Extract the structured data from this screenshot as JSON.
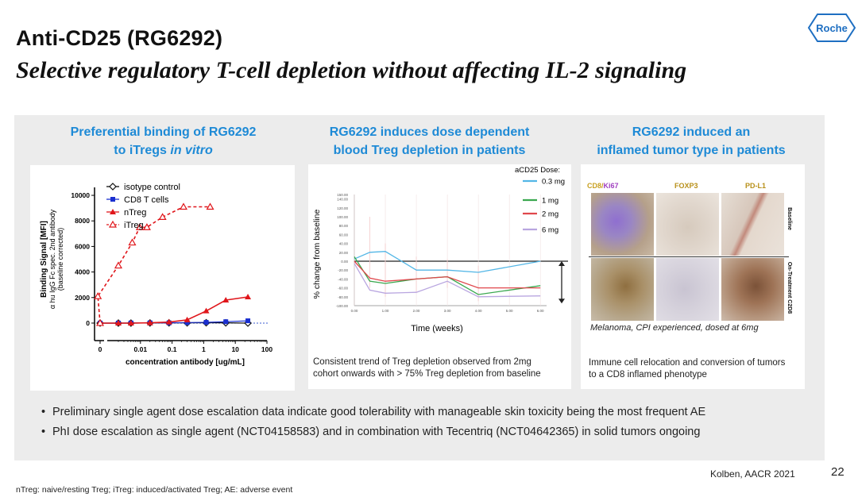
{
  "header": {
    "title": "Anti-CD25 (RG6292)",
    "subtitle": "Selective regulatory T-cell depletion without affecting IL-2 signaling",
    "logo_text": "Roche"
  },
  "columns": [
    {
      "title_line1": "Preferential binding of RG6292",
      "title_line2_pre": "to iTregs ",
      "title_line2_italic": "in vitro"
    },
    {
      "title_line1": "RG6292 induces dose dependent",
      "title_line2": "blood Treg depletion in patients"
    },
    {
      "title_line1": "RG6292 induced an",
      "title_line2": "inflamed tumor type in patients"
    }
  ],
  "captions": {
    "middle_line1": "Consistent trend of Treg depletion observed from 2mg",
    "middle_line2": "cohort onwards with > 75% Treg depletion from baseline",
    "right_line1": "Immune cell relocation and conversion of tumors",
    "right_line2": "to a CD8 inflamed phenotype"
  },
  "pathology": {
    "headers": [
      "CD8/",
      "Ki67",
      "FOXP3",
      "PD-L1"
    ],
    "row_labels": [
      "Baseline",
      "On-Treatment C2D8"
    ],
    "caption": "Melanoma, CPI experienced, dosed at 6mg"
  },
  "bullets": [
    "Preliminary single agent dose escalation data indicate good tolerability with manageable skin toxicity being the most frequent AE",
    "PhI dose escalation as single agent (NCT04158583) and in combination with Tecentriq (NCT04642365) in solid tumors ongoing"
  ],
  "footer": {
    "citation": "Kolben, AACR 2021",
    "page": "22",
    "footnote": "nTreg: naive/resting Treg; iTreg: induced/activated Treg; AE: adverse event"
  },
  "colors": {
    "accent": "#1e8ad6",
    "isotype": "#111111",
    "cd8": "#1a2fd0",
    "ntreg": "#e0161b",
    "itreg": "#e0161b",
    "dose_03": "#53b6e6",
    "dose_1": "#3aa84f",
    "dose_2": "#e0474c",
    "dose_6": "#b9a6e0"
  },
  "chart_data": [
    {
      "type": "line",
      "title": "Preferential binding of RG6292 to iTregs in vitro",
      "xlabel": "concentration antibody  [ug/mL]",
      "ylabel_lines": [
        "Binding Signal [MFI]",
        "α hu IgG Fc spec. 2nd antibody",
        "(baseline corrected)"
      ],
      "x_scale": "log",
      "x_ticks": [
        "0",
        "0.01",
        "0.1",
        "1",
        "10",
        "100"
      ],
      "y_ticks": [
        "0",
        "2000",
        "4000",
        "6000",
        "8000",
        "10000"
      ],
      "ylim": [
        -500,
        10500
      ],
      "series": [
        {
          "name": "isotype control",
          "marker": "diamond-open",
          "line": "solid",
          "x": [
            0.0002,
            0.002,
            0.005,
            0.02,
            0.08,
            0.3,
            1.2,
            5,
            25
          ],
          "y": [
            0,
            0,
            0,
            10,
            20,
            20,
            30,
            20,
            0
          ]
        },
        {
          "name": "CD8 T cells",
          "marker": "square",
          "line": "solid",
          "x": [
            0.0002,
            0.002,
            0.005,
            0.02,
            0.08,
            0.3,
            1.2,
            5,
            25
          ],
          "y": [
            0,
            0,
            10,
            20,
            20,
            40,
            60,
            110,
            180
          ]
        },
        {
          "name": "nTreg",
          "marker": "triangle",
          "line": "solid",
          "x": [
            0.0002,
            0.002,
            0.005,
            0.02,
            0.08,
            0.3,
            1.2,
            5,
            25
          ],
          "y": [
            0,
            0,
            0,
            20,
            80,
            250,
            950,
            1800,
            2050
          ]
        },
        {
          "name": "iTreg",
          "marker": "triangle-open",
          "line": "dashed",
          "x": [
            0.0002,
            0.00045,
            0.002,
            0.0055,
            0.0095,
            0.016,
            0.05,
            0.23,
            1.6
          ],
          "y": [
            0,
            2100,
            4500,
            6300,
            7500,
            7500,
            8300,
            9100,
            9100
          ]
        }
      ]
    },
    {
      "type": "line",
      "title": "RG6292 induces dose dependent blood Treg depletion in patients",
      "legend_title": "aCD25 Dose:",
      "xlabel": "Time (weeks)",
      "ylabel": "% change from baseline",
      "y_ticks": [
        "150.00",
        "140.00",
        "120.00",
        "100.00",
        "80.00",
        "60.00",
        "40.00",
        "20.00",
        "0.00",
        "-20.00",
        "-40.00",
        "-60.00",
        "-80.00",
        "-100.00"
      ],
      "x_ticks": [
        "0.00",
        "1.00",
        "2.00",
        "3.00",
        "4.00",
        "5.00",
        "6.00"
      ],
      "ylim": [
        -100,
        150
      ],
      "series": [
        {
          "name": "0.3 mg",
          "x": [
            0,
            0.5,
            1.0,
            2.0,
            3.0,
            4.0,
            6.0
          ],
          "y": [
            5,
            20,
            22,
            -20,
            -20,
            -25,
            0
          ]
        },
        {
          "name": "1 mg",
          "x": [
            0,
            0.5,
            1.0,
            2.0,
            3.0,
            4.0,
            6.0
          ],
          "y": [
            10,
            -45,
            -50,
            -40,
            -35,
            -75,
            -55
          ]
        },
        {
          "name": "2 mg",
          "x": [
            0,
            0.5,
            1.0,
            2.0,
            3.0,
            4.0,
            6.0
          ],
          "y": [
            0,
            -38,
            -45,
            -40,
            -35,
            -60,
            -60
          ]
        },
        {
          "name": "6 mg",
          "x": [
            0,
            0.5,
            1.0,
            2.0,
            3.0,
            4.0,
            6.0
          ],
          "y": [
            -5,
            -65,
            -72,
            -70,
            -45,
            -80,
            -78
          ]
        }
      ]
    }
  ]
}
